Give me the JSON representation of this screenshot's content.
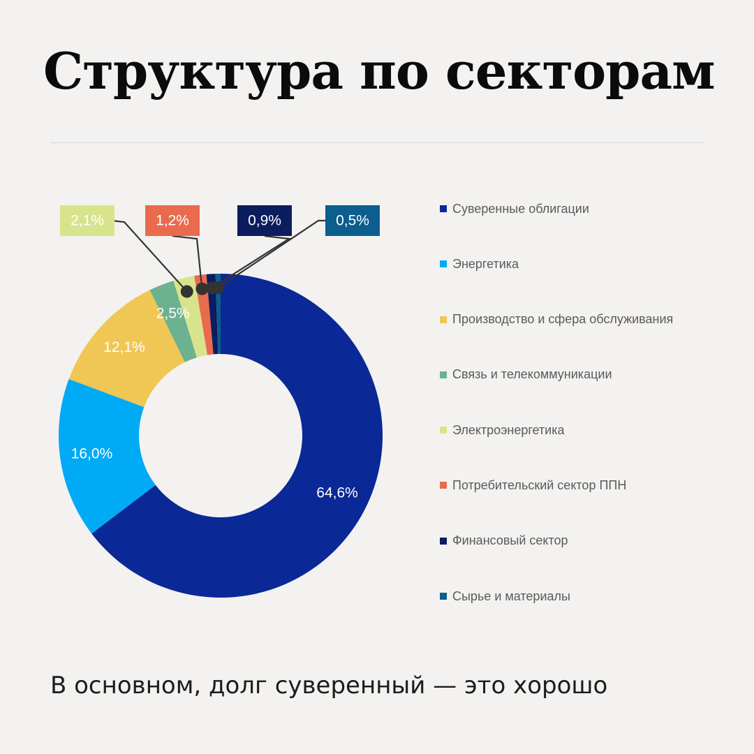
{
  "title": "Структура по секторам",
  "subtitle": "В основном, долг суверенный — это хорошо",
  "chart_data": {
    "type": "pie",
    "variant": "donut",
    "legend_position": "right",
    "slices": [
      {
        "label": "Суверенные облигации",
        "value": 64.6,
        "value_label": "64,6%",
        "color": "#0a2896",
        "label_style": "inside"
      },
      {
        "label": "Энергетика",
        "value": 16.0,
        "value_label": "16,0%",
        "color": "#00aaf5",
        "label_style": "inside"
      },
      {
        "label": "Производство и сфера обслуживания",
        "value": 12.1,
        "value_label": "12,1%",
        "color": "#f0c655",
        "label_style": "inside"
      },
      {
        "label": "Связь и телекоммуникации",
        "value": 2.5,
        "value_label": "2,5%",
        "color": "#6cb190",
        "label_style": "inside"
      },
      {
        "label": "Электроэнергетика",
        "value": 2.1,
        "value_label": "2,1%",
        "color": "#d8e48c",
        "label_style": "callout"
      },
      {
        "label": "Потребительский сектор ППН",
        "value": 1.2,
        "value_label": "1,2%",
        "color": "#ea6a4e",
        "label_style": "callout"
      },
      {
        "label": "Финансовый сектор",
        "value": 0.9,
        "value_label": "0,9%",
        "color": "#0b1d5e",
        "label_style": "callout"
      },
      {
        "label": "Сырье и материалы",
        "value": 0.5,
        "value_label": "0,5%",
        "color": "#0b5e8e",
        "label_style": "callout"
      }
    ]
  }
}
